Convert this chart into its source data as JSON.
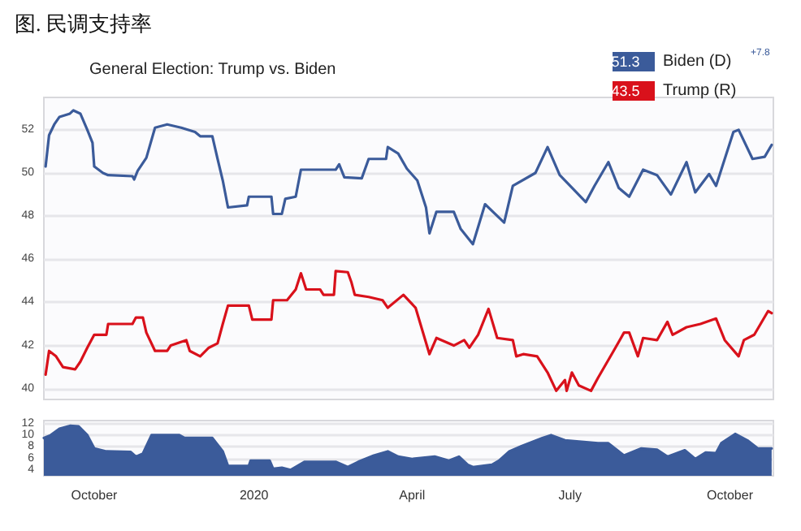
{
  "chart_data": [
    {
      "type": "line",
      "title": "图. 民调支持率",
      "subtitle": "General Election: Trump vs. Biden",
      "annotations": [
        "51.3",
        "43.5",
        "+7.8"
      ],
      "legend": "top right",
      "grid": "y",
      "marker": "none",
      "line_style": "solid",
      "tick_labels": "y",
      "xlim": [
        "2019-09-02",
        "2020-10-26"
      ],
      "ylim": [
        39.5,
        53.5
      ],
      "yticks": [
        40,
        42,
        44,
        46,
        48,
        50,
        52
      ],
      "series": [
        {
          "name": "Biden (D)",
          "color": "#3b5b9a",
          "x": [
            "2019-09-03",
            "2019-09-05",
            "2019-09-08",
            "2019-09-11",
            "2019-09-17",
            "2019-09-19",
            "2019-09-23",
            "2019-09-27",
            "2019-09-30",
            "2019-10-01",
            "2019-10-06",
            "2019-10-09",
            "2019-10-23",
            "2019-10-24",
            "2019-10-26",
            "2019-10-31",
            "2019-11-05",
            "2019-11-12",
            "2019-11-20",
            "2019-11-28",
            "2019-12-01",
            "2019-12-08",
            "2019-12-11",
            "2019-12-14",
            "2019-12-17",
            "2019-12-28",
            "2019-12-29",
            "2020-01-11",
            "2020-01-12",
            "2020-01-17",
            "2020-01-19",
            "2020-01-25",
            "2020-01-28",
            "2020-02-17",
            "2020-02-19",
            "2020-02-22",
            "2020-03-03",
            "2020-03-07",
            "2020-03-17",
            "2020-03-18",
            "2020-03-24",
            "2020-03-29",
            "2020-04-04",
            "2020-04-09",
            "2020-04-11",
            "2020-04-15",
            "2020-04-25",
            "2020-04-29",
            "2020-05-06",
            "2020-05-13",
            "2020-05-24",
            "2020-05-29",
            "2020-06-11",
            "2020-06-18",
            "2020-06-25",
            "2020-07-01",
            "2020-07-10",
            "2020-07-15",
            "2020-07-23",
            "2020-07-29",
            "2020-08-04",
            "2020-08-12",
            "2020-08-20",
            "2020-08-28",
            "2020-09-06",
            "2020-09-11",
            "2020-09-19",
            "2020-09-23",
            "2020-10-03",
            "2020-10-06",
            "2020-10-14",
            "2020-10-21",
            "2020-10-25"
          ],
          "values": [
            50.3,
            51.75,
            52.25,
            52.6,
            52.75,
            52.9,
            52.75,
            52,
            51.4,
            50.3,
            50,
            49.9,
            49.85,
            49.7,
            50.1,
            50.7,
            52.1,
            52.25,
            52.1,
            51.9,
            51.7,
            51.7,
            50.65,
            49.65,
            48.4,
            48.5,
            48.9,
            48.9,
            48.1,
            48.1,
            48.8,
            48.9,
            50.15,
            50.15,
            50.4,
            49.8,
            49.75,
            50.65,
            50.65,
            51.2,
            50.9,
            50.2,
            49.65,
            48.4,
            47.2,
            48.2,
            48.2,
            47.4,
            46.7,
            48.55,
            47.7,
            49.4,
            50,
            51.2,
            49.9,
            49.4,
            48.65,
            49.4,
            50.5,
            49.3,
            48.9,
            50.15,
            49.9,
            49,
            50.5,
            49.1,
            49.95,
            49.4,
            51.9,
            52,
            50.65,
            50.75,
            51.3
          ]
        },
        {
          "name": "Trump (R)",
          "color": "#d9111b",
          "x": [
            "2019-09-03",
            "2019-09-05",
            "2019-09-09",
            "2019-09-13",
            "2019-09-20",
            "2019-09-23",
            "2019-09-27",
            "2019-10-01",
            "2019-10-08",
            "2019-10-09",
            "2019-10-23",
            "2019-10-25",
            "2019-10-29",
            "2019-10-31",
            "2019-11-05",
            "2019-11-12",
            "2019-11-14",
            "2019-11-23",
            "2019-11-25",
            "2019-12-01",
            "2019-12-06",
            "2019-12-11",
            "2019-12-14",
            "2019-12-17",
            "2019-12-29",
            "2019-12-31",
            "2020-01-11",
            "2020-01-12",
            "2020-01-20",
            "2020-01-25",
            "2020-01-28",
            "2020-01-31",
            "2020-02-08",
            "2020-02-10",
            "2020-02-16",
            "2020-02-17",
            "2020-02-24",
            "2020-02-26",
            "2020-02-28",
            "2020-03-07",
            "2020-03-15",
            "2020-03-18",
            "2020-03-27",
            "2020-04-03",
            "2020-04-11",
            "2020-04-15",
            "2020-04-25",
            "2020-05-01",
            "2020-05-04",
            "2020-05-09",
            "2020-05-15",
            "2020-05-20",
            "2020-05-29",
            "2020-05-31",
            "2020-06-04",
            "2020-06-12",
            "2020-06-18",
            "2020-06-23",
            "2020-06-28",
            "2020-06-29",
            "2020-07-02",
            "2020-07-06",
            "2020-07-13",
            "2020-07-17",
            "2020-07-26",
            "2020-08-01",
            "2020-08-04",
            "2020-08-09",
            "2020-08-12",
            "2020-08-20",
            "2020-08-26",
            "2020-08-29",
            "2020-09-06",
            "2020-09-14",
            "2020-09-23",
            "2020-09-28",
            "2020-10-06",
            "2020-10-09",
            "2020-10-15",
            "2020-10-23",
            "2020-10-25"
          ],
          "values": [
            40.65,
            41.75,
            41.5,
            41,
            40.9,
            41.25,
            41.9,
            42.5,
            42.5,
            43,
            43,
            43.3,
            43.3,
            42.6,
            41.75,
            41.75,
            42,
            42.25,
            41.75,
            41.5,
            41.9,
            42.1,
            43,
            43.85,
            43.85,
            43.2,
            43.2,
            44.1,
            44.1,
            44.6,
            45.35,
            44.6,
            44.6,
            44.35,
            44.35,
            45.45,
            45.4,
            44.95,
            44.35,
            44.25,
            44.1,
            43.75,
            44.35,
            43.75,
            41.6,
            42.35,
            42,
            42.25,
            41.9,
            42.5,
            43.7,
            42.35,
            42.25,
            41.5,
            41.6,
            41.5,
            40.75,
            39.9,
            40.4,
            39.9,
            40.75,
            40.15,
            39.9,
            40.5,
            41.75,
            42.6,
            42.6,
            41.5,
            42.35,
            42.25,
            43.1,
            42.5,
            42.85,
            43,
            43.25,
            42.25,
            41.5,
            42.25,
            42.5,
            43.6,
            43.5
          ]
        }
      ]
    },
    {
      "type": "area",
      "grid": "y",
      "marker": "none",
      "xlim": [
        "2019-09-02",
        "2020-10-26"
      ],
      "xticks": [
        {
          "value": "2019-10-01",
          "label": "October"
        },
        {
          "value": "2020-01-01",
          "label": "2020"
        },
        {
          "value": "2020-04-01",
          "label": "April"
        },
        {
          "value": "2020-07-01",
          "label": "July"
        },
        {
          "value": "2020-10-01",
          "label": "October"
        }
      ],
      "ylim": [
        3,
        12.5
      ],
      "yticks": [
        4,
        6,
        8,
        10,
        12
      ],
      "series": [
        {
          "color": "#3b5b9a",
          "x": [
            "2019-09-02",
            "2019-09-06",
            "2019-09-11",
            "2019-09-17",
            "2019-09-22",
            "2019-09-27",
            "2019-10-01",
            "2019-10-08",
            "2019-10-22",
            "2019-10-25",
            "2019-10-29",
            "2019-11-03",
            "2019-11-19",
            "2019-11-22",
            "2019-12-08",
            "2019-12-14",
            "2019-12-17",
            "2019-12-29",
            "2019-12-30",
            "2020-01-10",
            "2020-01-12",
            "2020-01-17",
            "2020-01-22",
            "2020-01-30",
            "2020-02-17",
            "2020-02-24",
            "2020-03-01",
            "2020-03-10",
            "2020-03-18",
            "2020-03-24",
            "2020-04-01",
            "2020-04-14",
            "2020-04-22",
            "2020-04-28",
            "2020-05-03",
            "2020-05-06",
            "2020-05-17",
            "2020-05-21",
            "2020-05-27",
            "2020-06-03",
            "2020-06-15",
            "2020-06-20",
            "2020-06-28",
            "2020-07-17",
            "2020-07-23",
            "2020-08-01",
            "2020-08-11",
            "2020-08-20",
            "2020-08-26",
            "2020-09-05",
            "2020-09-11",
            "2020-09-17",
            "2020-09-23",
            "2020-09-26",
            "2020-10-04",
            "2020-10-11",
            "2020-10-17",
            "2020-10-25"
          ],
          "values": [
            9.5,
            10,
            11.1,
            11.6,
            11.5,
            10,
            7.7,
            7.2,
            7.1,
            6.3,
            6.8,
            10,
            10,
            9.5,
            9.5,
            7.2,
            4.7,
            4.7,
            5.6,
            5.6,
            4.2,
            4.4,
            4,
            5.4,
            5.4,
            4.5,
            5.4,
            6.5,
            7.2,
            6.3,
            5.9,
            6.3,
            5.6,
            6.3,
            4.9,
            4.5,
            4.9,
            5.6,
            7.2,
            8.1,
            9.5,
            10,
            9.1,
            8.6,
            8.6,
            6.5,
            7.7,
            7.5,
            6.3,
            7.4,
            5.9,
            7,
            6.9,
            8.6,
            10.2,
            9.1,
            7.7,
            7.7
          ]
        }
      ]
    }
  ]
}
